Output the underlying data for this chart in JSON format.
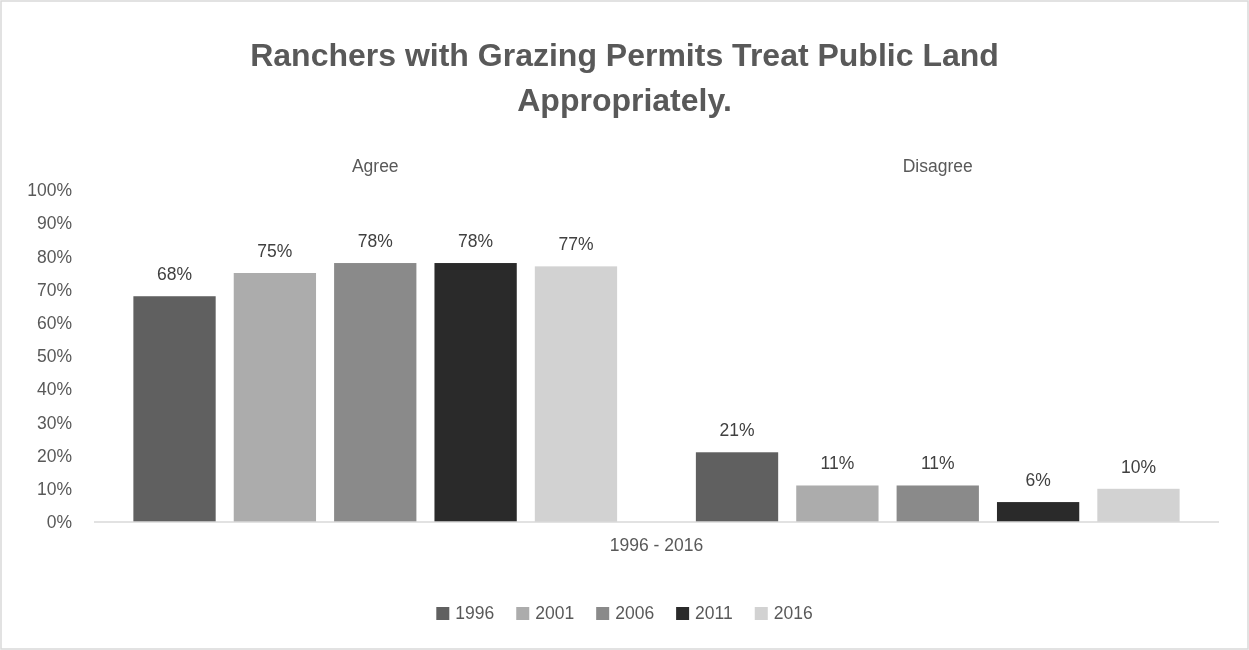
{
  "chart_data": {
    "type": "bar",
    "title": "Ranchers with Grazing Permits Treat Public Land Appropriately.",
    "xlabel": "1996 - 2016",
    "categories": [
      "Agree",
      "Disagree"
    ],
    "series": [
      {
        "name": "1996",
        "color": "#606060",
        "values": [
          68,
          21
        ],
        "value_labels": [
          "68%",
          "21%"
        ]
      },
      {
        "name": "2001",
        "color": "#acacac",
        "values": [
          75,
          11
        ],
        "value_labels": [
          "75%",
          "11%"
        ]
      },
      {
        "name": "2006",
        "color": "#8a8a8a",
        "values": [
          78,
          11
        ],
        "value_labels": [
          "78%",
          "11%"
        ]
      },
      {
        "name": "2011",
        "color": "#2a2a2a",
        "values": [
          78,
          6
        ],
        "value_labels": [
          "78%",
          "6%"
        ]
      },
      {
        "name": "2016",
        "color": "#d2d2d2",
        "values": [
          77,
          10
        ],
        "value_labels": [
          "77%",
          "10%"
        ]
      }
    ],
    "ylim": [
      0,
      100
    ],
    "yticks": [
      {
        "value": 0,
        "label": "0%"
      },
      {
        "value": 10,
        "label": "10%"
      },
      {
        "value": 20,
        "label": "20%"
      },
      {
        "value": 30,
        "label": "30%"
      },
      {
        "value": 40,
        "label": "40%"
      },
      {
        "value": 50,
        "label": "50%"
      },
      {
        "value": 60,
        "label": "60%"
      },
      {
        "value": 70,
        "label": "70%"
      },
      {
        "value": 80,
        "label": "80%"
      },
      {
        "value": 90,
        "label": "90%"
      },
      {
        "value": 100,
        "label": "100%"
      }
    ],
    "legend": "bottom"
  }
}
